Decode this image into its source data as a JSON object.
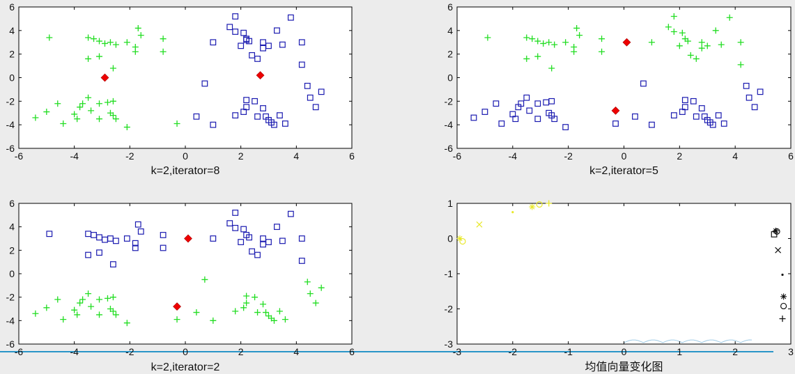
{
  "chart_data": [
    {
      "type": "scatter",
      "title": "k=2,iterator=8",
      "xlim": [
        -6,
        6
      ],
      "ylim": [
        -6,
        6
      ],
      "xticks": [
        -6,
        -4,
        -2,
        0,
        2,
        4,
        6
      ],
      "yticks": [
        -6,
        -4,
        -2,
        0,
        2,
        4,
        6
      ],
      "series": [
        {
          "marker": "plus",
          "color": "#22dd22",
          "points": [
            [
              -4.9,
              3.4
            ],
            [
              -3.5,
              3.4
            ],
            [
              -3.3,
              3.3
            ],
            [
              -3.1,
              3.1
            ],
            [
              -2.9,
              2.9
            ],
            [
              -2.7,
              3.0
            ],
            [
              -2.5,
              2.8
            ],
            [
              -2.1,
              3.0
            ],
            [
              -1.8,
              2.6
            ],
            [
              -1.7,
              4.2
            ],
            [
              -1.6,
              3.6
            ],
            [
              -1.8,
              2.2
            ],
            [
              -0.8,
              3.3
            ],
            [
              -0.8,
              2.2
            ],
            [
              -3.5,
              1.6
            ],
            [
              -3.1,
              1.8
            ],
            [
              -2.6,
              0.8
            ],
            [
              -5.4,
              -3.4
            ],
            [
              -5.0,
              -2.9
            ],
            [
              -4.6,
              -2.2
            ],
            [
              -4.4,
              -3.9
            ],
            [
              -4.0,
              -3.1
            ],
            [
              -3.9,
              -3.5
            ],
            [
              -3.8,
              -2.5
            ],
            [
              -3.7,
              -2.2
            ],
            [
              -3.5,
              -1.7
            ],
            [
              -3.4,
              -2.8
            ],
            [
              -3.1,
              -3.5
            ],
            [
              -3.1,
              -2.2
            ],
            [
              -2.8,
              -2.1
            ],
            [
              -2.7,
              -3.0
            ],
            [
              -2.6,
              -2.0
            ],
            [
              -2.6,
              -3.2
            ],
            [
              -2.5,
              -3.5
            ],
            [
              -2.1,
              -4.2
            ],
            [
              -0.3,
              -3.9
            ]
          ]
        },
        {
          "marker": "square",
          "color": "#1a1ab0",
          "points": [
            [
              0.4,
              -3.3
            ],
            [
              1.0,
              -4.0
            ],
            [
              0.7,
              -0.5
            ],
            [
              1.0,
              3.0
            ],
            [
              1.6,
              4.3
            ],
            [
              1.8,
              5.2
            ],
            [
              1.8,
              3.9
            ],
            [
              2.0,
              2.7
            ],
            [
              2.1,
              3.8
            ],
            [
              2.2,
              3.3
            ],
            [
              2.3,
              3.1
            ],
            [
              2.2,
              3.2
            ],
            [
              2.4,
              1.9
            ],
            [
              2.6,
              1.6
            ],
            [
              2.8,
              2.5
            ],
            [
              2.8,
              3.0
            ],
            [
              3.0,
              2.7
            ],
            [
              3.3,
              4.0
            ],
            [
              3.5,
              2.8
            ],
            [
              3.8,
              5.1
            ],
            [
              4.2,
              3.0
            ],
            [
              4.2,
              1.1
            ],
            [
              1.8,
              -3.2
            ],
            [
              2.1,
              -2.9
            ],
            [
              2.2,
              -1.9
            ],
            [
              2.2,
              -2.5
            ],
            [
              2.5,
              -2.0
            ],
            [
              2.6,
              -3.3
            ],
            [
              2.8,
              -2.6
            ],
            [
              2.9,
              -3.3
            ],
            [
              3.0,
              -3.6
            ],
            [
              3.1,
              -3.8
            ],
            [
              3.2,
              -4.0
            ],
            [
              3.4,
              -3.2
            ],
            [
              3.6,
              -3.9
            ],
            [
              4.4,
              -0.7
            ],
            [
              4.5,
              -1.7
            ],
            [
              4.7,
              -2.5
            ],
            [
              4.9,
              -1.2
            ]
          ]
        },
        {
          "marker": "diamond",
          "color": "#ee0000",
          "points": [
            [
              -2.9,
              0.0
            ],
            [
              2.7,
              0.2
            ]
          ]
        }
      ]
    },
    {
      "type": "scatter",
      "title": "k=2,iterator=5",
      "xlim": [
        -6,
        6
      ],
      "ylim": [
        -6,
        6
      ],
      "xticks": [
        -6,
        -4,
        -2,
        0,
        2,
        4,
        6
      ],
      "yticks": [
        -6,
        -4,
        -2,
        0,
        2,
        4,
        6
      ],
      "series": [
        {
          "marker": "plus",
          "color": "#22dd22",
          "points": [
            [
              -4.9,
              3.4
            ],
            [
              -3.5,
              3.4
            ],
            [
              -3.3,
              3.3
            ],
            [
              -3.1,
              3.1
            ],
            [
              -2.9,
              2.9
            ],
            [
              -2.7,
              3.0
            ],
            [
              -2.5,
              2.8
            ],
            [
              -2.1,
              3.0
            ],
            [
              -1.8,
              2.6
            ],
            [
              -1.7,
              4.2
            ],
            [
              -1.6,
              3.6
            ],
            [
              -1.8,
              2.2
            ],
            [
              -0.8,
              3.3
            ],
            [
              -0.8,
              2.2
            ],
            [
              -3.5,
              1.6
            ],
            [
              -3.1,
              1.8
            ],
            [
              -2.6,
              0.8
            ],
            [
              1.0,
              3.0
            ],
            [
              1.6,
              4.3
            ],
            [
              1.8,
              5.2
            ],
            [
              1.8,
              3.9
            ],
            [
              2.0,
              2.7
            ],
            [
              2.1,
              3.8
            ],
            [
              2.2,
              3.3
            ],
            [
              2.3,
              3.1
            ],
            [
              2.4,
              1.9
            ],
            [
              2.6,
              1.6
            ],
            [
              2.8,
              2.5
            ],
            [
              2.8,
              3.0
            ],
            [
              3.0,
              2.7
            ],
            [
              3.3,
              4.0
            ],
            [
              3.5,
              2.8
            ],
            [
              3.8,
              5.1
            ],
            [
              4.2,
              3.0
            ],
            [
              4.2,
              1.1
            ]
          ]
        },
        {
          "marker": "square",
          "color": "#1a1ab0",
          "points": [
            [
              -5.4,
              -3.4
            ],
            [
              -5.0,
              -2.9
            ],
            [
              -4.6,
              -2.2
            ],
            [
              -4.4,
              -3.9
            ],
            [
              -4.0,
              -3.1
            ],
            [
              -3.9,
              -3.5
            ],
            [
              -3.8,
              -2.5
            ],
            [
              -3.7,
              -2.2
            ],
            [
              -3.5,
              -1.7
            ],
            [
              -3.4,
              -2.8
            ],
            [
              -3.1,
              -3.5
            ],
            [
              -3.1,
              -2.2
            ],
            [
              -2.8,
              -2.1
            ],
            [
              -2.7,
              -3.0
            ],
            [
              -2.6,
              -2.0
            ],
            [
              -2.6,
              -3.2
            ],
            [
              -2.5,
              -3.5
            ],
            [
              -2.1,
              -4.2
            ],
            [
              -0.3,
              -3.9
            ],
            [
              0.4,
              -3.3
            ],
            [
              1.0,
              -4.0
            ],
            [
              0.7,
              -0.5
            ],
            [
              1.8,
              -3.2
            ],
            [
              2.1,
              -2.9
            ],
            [
              2.2,
              -1.9
            ],
            [
              2.2,
              -2.5
            ],
            [
              2.5,
              -2.0
            ],
            [
              2.6,
              -3.3
            ],
            [
              2.8,
              -2.6
            ],
            [
              2.9,
              -3.3
            ],
            [
              3.0,
              -3.6
            ],
            [
              3.1,
              -3.8
            ],
            [
              3.2,
              -4.0
            ],
            [
              3.4,
              -3.2
            ],
            [
              3.6,
              -3.9
            ],
            [
              4.4,
              -0.7
            ],
            [
              4.5,
              -1.7
            ],
            [
              4.7,
              -2.5
            ],
            [
              4.9,
              -1.2
            ]
          ]
        },
        {
          "marker": "diamond",
          "color": "#ee0000",
          "points": [
            [
              0.1,
              3.0
            ],
            [
              -0.3,
              -2.8
            ]
          ]
        }
      ]
    },
    {
      "type": "scatter",
      "title": "k=2,iterator=2",
      "xlim": [
        -6,
        6
      ],
      "ylim": [
        -6,
        6
      ],
      "xticks": [
        -6,
        -4,
        -2,
        0,
        2,
        4,
        6
      ],
      "yticks": [
        -6,
        -4,
        -2,
        0,
        2,
        4,
        6
      ],
      "series": [
        {
          "marker": "square",
          "color": "#1a1ab0",
          "points": [
            [
              -4.9,
              3.4
            ],
            [
              -3.5,
              3.4
            ],
            [
              -3.3,
              3.3
            ],
            [
              -3.1,
              3.1
            ],
            [
              -2.9,
              2.9
            ],
            [
              -2.7,
              3.0
            ],
            [
              -2.5,
              2.8
            ],
            [
              -2.1,
              3.0
            ],
            [
              -1.8,
              2.6
            ],
            [
              -1.7,
              4.2
            ],
            [
              -1.6,
              3.6
            ],
            [
              -1.8,
              2.2
            ],
            [
              -0.8,
              3.3
            ],
            [
              -0.8,
              2.2
            ],
            [
              -3.5,
              1.6
            ],
            [
              -3.1,
              1.8
            ],
            [
              -2.6,
              0.8
            ],
            [
              1.0,
              3.0
            ],
            [
              1.6,
              4.3
            ],
            [
              1.8,
              5.2
            ],
            [
              1.8,
              3.9
            ],
            [
              2.0,
              2.7
            ],
            [
              2.1,
              3.8
            ],
            [
              2.2,
              3.3
            ],
            [
              2.3,
              3.1
            ],
            [
              2.4,
              1.9
            ],
            [
              2.6,
              1.6
            ],
            [
              2.8,
              2.5
            ],
            [
              2.8,
              3.0
            ],
            [
              3.0,
              2.7
            ],
            [
              3.3,
              4.0
            ],
            [
              3.5,
              2.8
            ],
            [
              3.8,
              5.1
            ],
            [
              4.2,
              3.0
            ],
            [
              4.2,
              1.1
            ]
          ]
        },
        {
          "marker": "plus",
          "color": "#22dd22",
          "points": [
            [
              -5.4,
              -3.4
            ],
            [
              -5.0,
              -2.9
            ],
            [
              -4.6,
              -2.2
            ],
            [
              -4.4,
              -3.9
            ],
            [
              -4.0,
              -3.1
            ],
            [
              -3.9,
              -3.5
            ],
            [
              -3.8,
              -2.5
            ],
            [
              -3.7,
              -2.2
            ],
            [
              -3.5,
              -1.7
            ],
            [
              -3.4,
              -2.8
            ],
            [
              -3.1,
              -3.5
            ],
            [
              -3.1,
              -2.2
            ],
            [
              -2.8,
              -2.1
            ],
            [
              -2.7,
              -3.0
            ],
            [
              -2.6,
              -2.0
            ],
            [
              -2.6,
              -3.2
            ],
            [
              -2.5,
              -3.5
            ],
            [
              -2.1,
              -4.2
            ],
            [
              -0.3,
              -3.9
            ],
            [
              0.4,
              -3.3
            ],
            [
              1.0,
              -4.0
            ],
            [
              0.7,
              -0.5
            ],
            [
              1.8,
              -3.2
            ],
            [
              2.1,
              -2.9
            ],
            [
              2.2,
              -1.9
            ],
            [
              2.2,
              -2.5
            ],
            [
              2.5,
              -2.0
            ],
            [
              2.6,
              -3.3
            ],
            [
              2.8,
              -2.6
            ],
            [
              2.9,
              -3.3
            ],
            [
              3.0,
              -3.6
            ],
            [
              3.1,
              -3.8
            ],
            [
              3.2,
              -4.0
            ],
            [
              3.4,
              -3.2
            ],
            [
              3.6,
              -3.9
            ],
            [
              4.4,
              -0.7
            ],
            [
              4.5,
              -1.7
            ],
            [
              4.7,
              -2.5
            ],
            [
              4.9,
              -1.2
            ]
          ]
        },
        {
          "marker": "diamond",
          "color": "#ee0000",
          "points": [
            [
              0.1,
              3.0
            ],
            [
              -0.3,
              -2.8
            ]
          ]
        }
      ]
    },
    {
      "type": "scatter",
      "title": "均值向量变化图",
      "xlim": [
        -3,
        3
      ],
      "ylim": [
        -3,
        1
      ],
      "xticks": [
        -3,
        -2,
        -1,
        0,
        1,
        2,
        3
      ],
      "yticks": [
        -3,
        -2,
        -1,
        0,
        1
      ],
      "series": [
        {
          "color": "#e8e82a",
          "points": [
            {
              "x": -2.95,
              "y": 0.0,
              "marker": "star"
            },
            {
              "x": -2.9,
              "y": -0.08,
              "marker": "circle"
            },
            {
              "x": -2.6,
              "y": 0.4,
              "marker": "x"
            },
            {
              "x": -2.0,
              "y": 0.75,
              "marker": "dot"
            },
            {
              "x": -1.65,
              "y": 0.9,
              "marker": "star"
            },
            {
              "x": -1.52,
              "y": 0.97,
              "marker": "circle"
            },
            {
              "x": -1.35,
              "y": 1.0,
              "marker": "plus"
            }
          ]
        },
        {
          "color": "#111111",
          "points": [
            {
              "x": 2.73,
              "y": 0.22,
              "marker": "star"
            },
            {
              "x": 2.75,
              "y": 0.2,
              "marker": "circle"
            },
            {
              "x": 2.7,
              "y": 0.12,
              "marker": "square"
            },
            {
              "x": 2.77,
              "y": -0.33,
              "marker": "x"
            },
            {
              "x": 2.85,
              "y": -1.03,
              "marker": "dot"
            },
            {
              "x": 2.87,
              "y": -1.65,
              "marker": "star"
            },
            {
              "x": 2.87,
              "y": -1.92,
              "marker": "circle"
            },
            {
              "x": 2.85,
              "y": -2.28,
              "marker": "plus"
            }
          ]
        }
      ]
    }
  ],
  "colors": {
    "background": "#ececec",
    "plot_area": "#ffffff",
    "rule": "#2a95c8",
    "trace": "#9fcbe6"
  }
}
